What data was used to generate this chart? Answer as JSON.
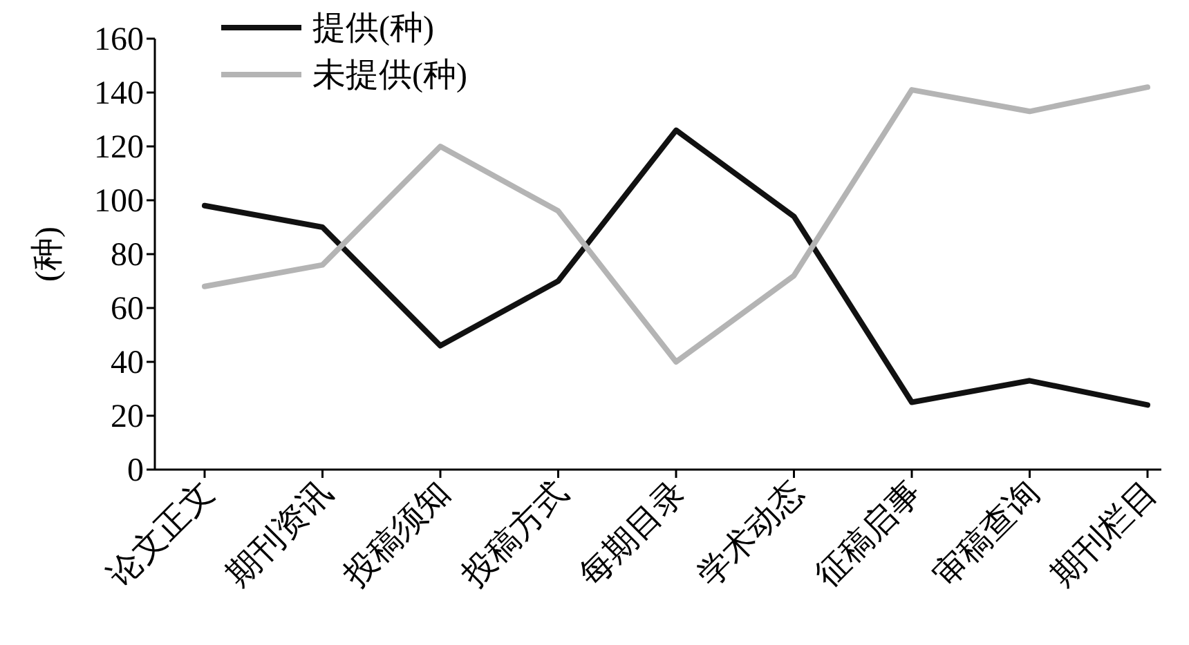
{
  "chart_data": {
    "type": "line",
    "ylabel": "(种)",
    "categories": [
      "论文正文",
      "期刊资讯",
      "投稿须知",
      "投稿方式",
      "每期目录",
      "学术动态",
      "征稿启事",
      "审稿查询",
      "期刊栏目"
    ],
    "series": [
      {
        "name": "提供(种)",
        "color": "#111111",
        "values": [
          98,
          90,
          46,
          70,
          126,
          94,
          25,
          33,
          24
        ]
      },
      {
        "name": "未提供(种)",
        "color": "#b4b4b4",
        "values": [
          68,
          76,
          120,
          96,
          40,
          72,
          141,
          133,
          142
        ]
      }
    ],
    "ylim": [
      0,
      160
    ],
    "yticks": [
      0,
      20,
      40,
      60,
      80,
      100,
      120,
      140,
      160
    ],
    "legend": "top left",
    "grid": false,
    "marker": "none",
    "line_style": "solid"
  }
}
